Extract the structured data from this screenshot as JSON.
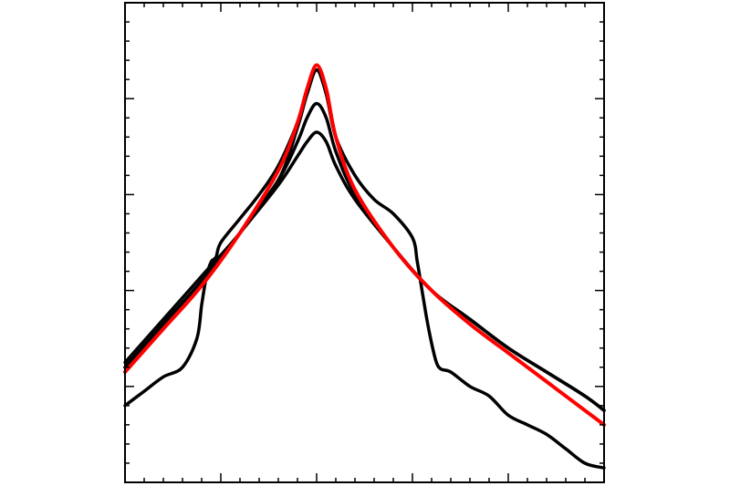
{
  "chart_data": {
    "type": "line",
    "title": "",
    "xlabel": "",
    "ylabel": "",
    "xlim": [
      0,
      5
    ],
    "ylim": [
      0,
      5
    ],
    "y_scale": "log",
    "major_x_ticks": [
      1,
      2,
      3,
      4
    ],
    "major_y_ticks": [
      1,
      2,
      3,
      4
    ],
    "minor_tick_step": 0.2,
    "grid": false,
    "legend": "none",
    "series": [
      {
        "color": "#ff0000",
        "x": [
          0,
          0.4,
          0.8,
          1.2,
          1.6,
          1.8,
          1.9,
          2.0,
          2.1,
          2.2,
          2.4,
          2.8,
          3.2,
          3.6,
          4.0,
          4.4,
          4.8,
          5.0
        ],
        "y": [
          1.15,
          1.6,
          2.05,
          2.6,
          3.25,
          3.75,
          4.1,
          4.35,
          4.1,
          3.6,
          3.05,
          2.45,
          2.0,
          1.65,
          1.35,
          1.05,
          0.75,
          0.6
        ]
      },
      {
        "color": "#000000",
        "x": [
          0,
          0.4,
          0.8,
          1.2,
          1.6,
          1.8,
          1.9,
          2.0,
          2.1,
          2.2,
          2.4,
          2.8,
          3.2,
          3.6,
          4.0,
          4.4,
          4.8,
          5.0
        ],
        "y": [
          1.25,
          1.7,
          2.15,
          2.6,
          3.15,
          3.7,
          4.05,
          4.3,
          4.05,
          3.6,
          3.05,
          2.45,
          2.0,
          1.7,
          1.4,
          1.15,
          0.9,
          0.75
        ]
      },
      {
        "color": "#000000",
        "x": [
          0,
          0.4,
          0.8,
          1.2,
          1.6,
          1.8,
          1.9,
          2.0,
          2.1,
          2.2,
          2.4,
          2.8,
          3.2,
          3.6,
          4.0,
          4.4,
          4.8,
          5.0
        ],
        "y": [
          1.2,
          1.65,
          2.1,
          2.6,
          3.15,
          3.55,
          3.8,
          3.95,
          3.8,
          3.45,
          3.0,
          2.45,
          2.0,
          1.7,
          1.4,
          1.15,
          0.9,
          0.75
        ]
      },
      {
        "color": "#000000",
        "x": [
          0,
          0.4,
          0.8,
          1.2,
          1.6,
          1.8,
          1.9,
          2.0,
          2.1,
          2.2,
          2.4,
          2.8,
          3.2,
          3.6,
          4.0,
          4.4,
          4.8,
          5.0
        ],
        "y": [
          1.2,
          1.65,
          2.1,
          2.6,
          3.1,
          3.4,
          3.55,
          3.65,
          3.55,
          3.3,
          2.95,
          2.45,
          2.0,
          1.7,
          1.4,
          1.15,
          0.9,
          0.75
        ]
      },
      {
        "color": "#000000",
        "x": [
          0,
          0.2,
          0.4,
          0.6,
          0.75,
          0.8,
          0.85,
          0.9,
          0.95,
          1.0,
          1.2,
          1.4,
          1.6,
          1.8,
          1.9,
          2.0,
          2.1,
          2.2,
          2.4,
          2.6,
          2.8,
          3.0,
          3.05,
          3.1,
          3.15,
          3.2,
          3.25,
          3.3,
          3.4,
          3.6,
          3.8,
          4.0,
          4.2,
          4.4,
          4.6,
          4.8,
          5.0
        ],
        "y": [
          0.8,
          0.95,
          1.1,
          1.2,
          1.5,
          1.85,
          2.15,
          2.3,
          2.35,
          2.5,
          2.75,
          3.0,
          3.3,
          3.75,
          4.05,
          4.3,
          4.05,
          3.6,
          3.2,
          2.95,
          2.8,
          2.55,
          2.3,
          2.0,
          1.7,
          1.45,
          1.25,
          1.18,
          1.15,
          1.0,
          0.9,
          0.7,
          0.6,
          0.5,
          0.35,
          0.2,
          0.15
        ]
      }
    ]
  }
}
